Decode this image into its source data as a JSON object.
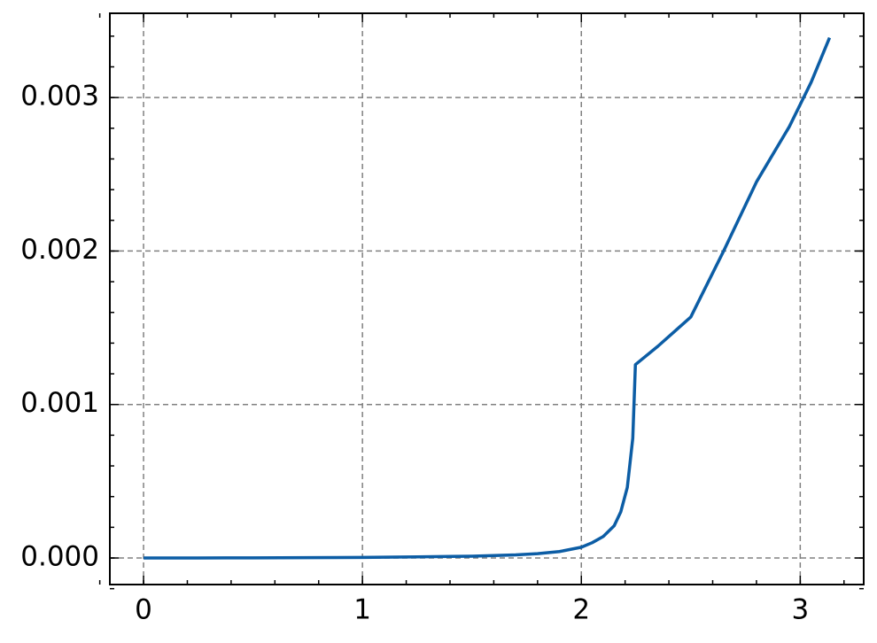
{
  "chart_data": {
    "type": "line",
    "x": [
      0,
      0.25,
      0.5,
      0.75,
      1.0,
      1.25,
      1.5,
      1.7,
      1.8,
      1.9,
      2.0,
      2.05,
      2.1,
      2.15,
      2.18,
      2.21,
      2.235,
      2.247,
      2.35,
      2.5,
      2.65,
      2.8,
      2.95,
      3.05,
      3.134
    ],
    "series": [
      {
        "color": "#0C5DA5",
        "values": [
          0,
          0,
          1e-06,
          2e-06,
          4e-06,
          7e-06,
          1.2e-05,
          2e-05,
          2.8e-05,
          4.2e-05,
          7e-05,
          0.0001,
          0.00014,
          0.00021,
          0.0003,
          0.00046,
          0.00078,
          0.00126,
          0.00138,
          0.00157,
          0.002,
          0.00245,
          0.00281,
          0.0031,
          0.00339
        ]
      }
    ],
    "xlim": [
      -0.154,
      3.29
    ],
    "ylim": [
      -0.000173,
      0.003549
    ],
    "xticks": [
      0,
      1,
      2,
      3
    ],
    "yticks": [
      {
        "value": 0,
        "label": "0.000"
      },
      0.001,
      0.002,
      0.003
    ],
    "grid": true
  }
}
